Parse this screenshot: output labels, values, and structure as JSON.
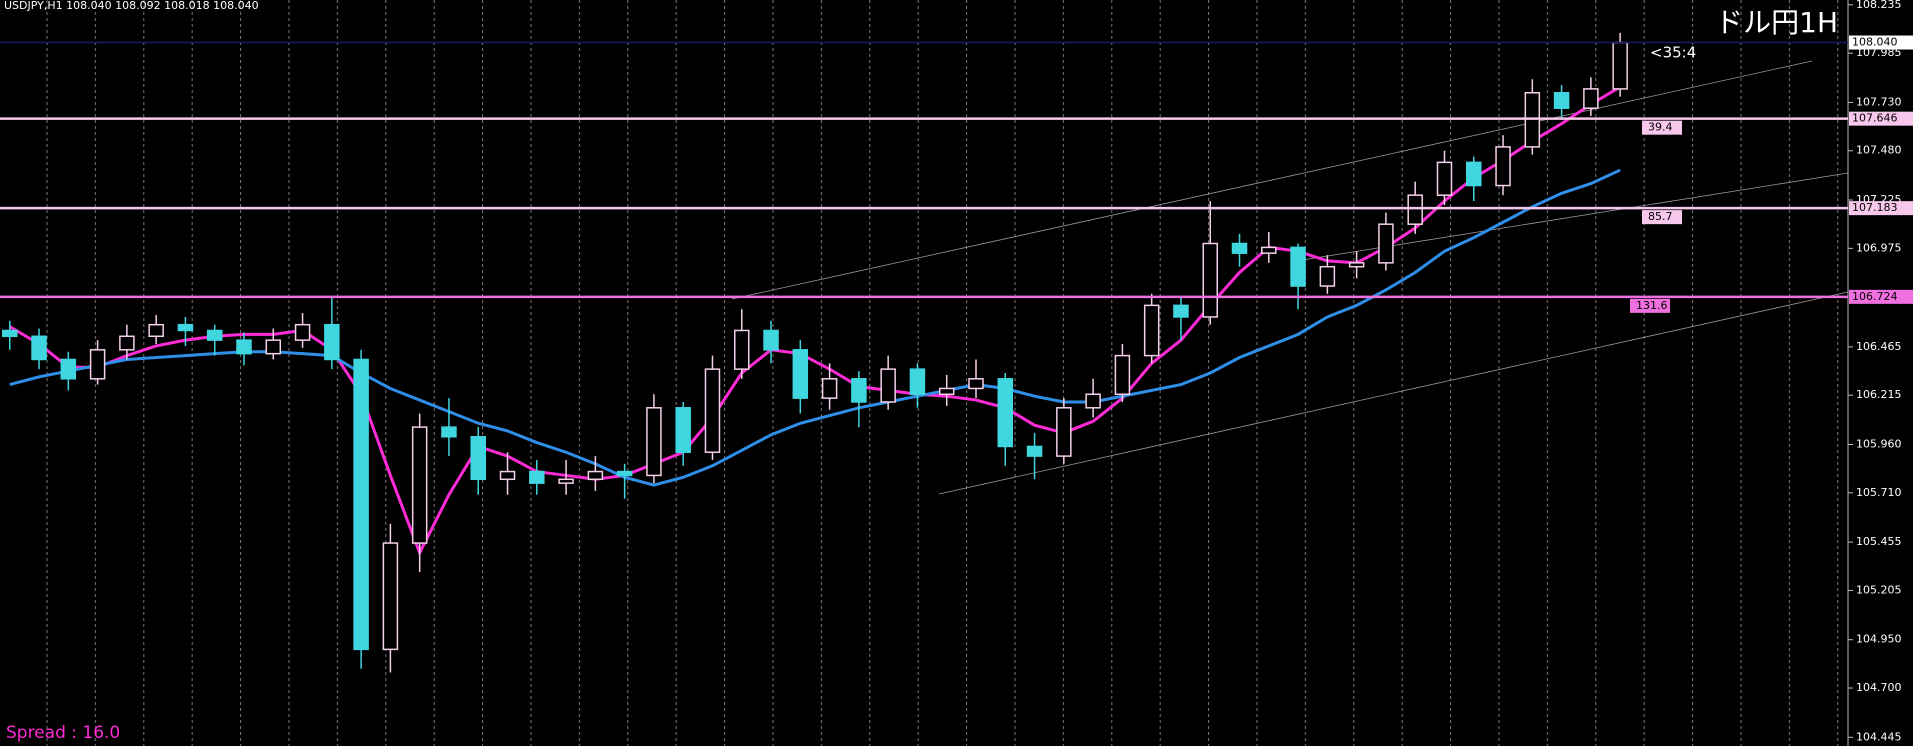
{
  "chart_data": {
    "type": "candlestick",
    "title": "ドル円1H",
    "subtitle": "USDJPY,H1  108.040 108.092 108.018 108.040",
    "annotation": "<35:4",
    "footer": "Spread : 16.0",
    "ylim": [
      104.4,
      108.26
    ],
    "yticks": [
      108.235,
      107.985,
      {
        "value": 107.73,
        "label": "107.730"
      },
      {
        "value": 107.48,
        "label": "107.480"
      },
      107.225,
      106.975,
      106.465,
      106.215,
      {
        "value": 105.96,
        "label": "105.960"
      },
      {
        "value": 105.71,
        "label": "105.710"
      },
      105.455,
      105.205,
      {
        "value": 104.95,
        "label": "104.950"
      },
      {
        "value": 104.7,
        "label": "104.700"
      },
      104.445
    ],
    "up_color": "#f4d0ea",
    "down_color": "#3fd6e0",
    "open": [
      106.55,
      106.52,
      106.4,
      106.3,
      106.45,
      106.52,
      106.58,
      106.55,
      106.5,
      106.43,
      106.5,
      106.58,
      106.4,
      104.9,
      105.45,
      106.05,
      106.0,
      105.78,
      105.82,
      105.76,
      105.78,
      105.82,
      105.8,
      106.15,
      105.92,
      106.35,
      106.55,
      106.45,
      106.2,
      106.3,
      106.18,
      106.35,
      106.22,
      106.25,
      106.3,
      105.95,
      105.9,
      106.15,
      106.22,
      106.42,
      106.68,
      106.62,
      107.0,
      106.95,
      106.98,
      106.78,
      106.88,
      106.9,
      107.1,
      107.25,
      107.42,
      107.3,
      107.5,
      107.78,
      107.7,
      107.8
    ],
    "high": [
      106.6,
      106.56,
      106.44,
      106.5,
      106.58,
      106.63,
      106.62,
      106.58,
      106.54,
      106.56,
      106.64,
      106.72,
      106.45,
      105.55,
      106.12,
      106.2,
      106.05,
      105.92,
      105.88,
      105.88,
      105.9,
      105.86,
      106.22,
      106.18,
      106.42,
      106.66,
      106.6,
      106.5,
      106.38,
      106.34,
      106.42,
      106.38,
      106.32,
      106.4,
      106.33,
      106.02,
      106.2,
      106.3,
      106.48,
      106.74,
      106.72,
      107.22,
      107.05,
      107.06,
      107.0,
      106.94,
      106.96,
      107.16,
      107.32,
      107.48,
      107.45,
      107.56,
      107.85,
      107.82,
      107.86,
      108.09
    ],
    "low": [
      106.45,
      106.35,
      106.24,
      106.27,
      106.4,
      106.48,
      106.47,
      106.42,
      106.37,
      106.4,
      106.46,
      106.35,
      104.8,
      104.78,
      105.3,
      105.9,
      105.7,
      105.7,
      105.7,
      105.7,
      105.72,
      105.68,
      105.76,
      105.85,
      105.88,
      106.3,
      106.38,
      106.12,
      106.14,
      106.05,
      106.14,
      106.15,
      106.16,
      106.2,
      105.85,
      105.78,
      105.86,
      106.1,
      106.18,
      106.38,
      106.5,
      106.58,
      106.88,
      106.9,
      106.66,
      106.74,
      106.82,
      106.86,
      107.05,
      107.2,
      107.22,
      107.25,
      107.46,
      107.64,
      107.66,
      107.76
    ],
    "close": [
      106.52,
      106.4,
      106.3,
      106.45,
      106.52,
      106.58,
      106.55,
      106.5,
      106.43,
      106.5,
      106.58,
      106.4,
      104.9,
      105.45,
      106.05,
      106.0,
      105.78,
      105.82,
      105.76,
      105.78,
      105.82,
      105.8,
      106.15,
      105.92,
      106.35,
      106.55,
      106.45,
      106.2,
      106.3,
      106.18,
      106.35,
      106.22,
      106.25,
      106.3,
      105.95,
      105.9,
      106.15,
      106.22,
      106.42,
      106.68,
      106.62,
      107.0,
      106.95,
      106.98,
      106.78,
      106.88,
      106.9,
      107.1,
      107.25,
      107.42,
      107.3,
      107.5,
      107.78,
      107.7,
      107.8,
      108.04
    ],
    "lines": [
      {
        "color": "#ff2bd6",
        "values": [
          106.57,
          106.48,
          106.36,
          106.36,
          106.42,
          106.47,
          106.5,
          106.52,
          106.53,
          106.53,
          106.55,
          106.45,
          106.22,
          105.8,
          105.4,
          105.7,
          105.95,
          105.9,
          105.82,
          105.8,
          105.78,
          105.8,
          105.86,
          105.92,
          106.1,
          106.33,
          106.45,
          106.43,
          106.35,
          106.26,
          106.24,
          106.22,
          106.21,
          106.19,
          106.15,
          106.06,
          106.02,
          106.08,
          106.2,
          106.38,
          106.5,
          106.68,
          106.85,
          106.98,
          106.96,
          106.91,
          106.9,
          106.98,
          107.08,
          107.22,
          107.34,
          107.43,
          107.53,
          107.62,
          107.72,
          107.81
        ]
      },
      {
        "color": "#2f8fe8",
        "values": [
          106.27,
          106.31,
          106.34,
          106.37,
          106.4,
          106.41,
          106.42,
          106.43,
          106.44,
          106.44,
          106.43,
          106.42,
          106.33,
          106.25,
          106.19,
          106.13,
          106.07,
          106.03,
          105.97,
          105.92,
          105.86,
          105.79,
          105.75,
          105.79,
          105.85,
          105.93,
          106.01,
          106.07,
          106.11,
          106.15,
          106.18,
          106.21,
          106.24,
          106.27,
          106.25,
          106.21,
          106.18,
          106.18,
          106.21,
          106.24,
          106.27,
          106.33,
          106.41,
          106.47,
          106.53,
          106.62,
          106.68,
          106.76,
          106.85,
          106.96,
          107.03,
          107.11,
          107.19,
          107.26,
          107.31,
          107.38
        ]
      }
    ],
    "hlines": [
      {
        "value": 107.646,
        "note": 39.4,
        "color": "#f8c8ec"
      },
      {
        "value": 107.183,
        "note": 85.7,
        "color": "#f8c8ec"
      },
      {
        "value": 106.724,
        "note": 131.6,
        "color": "#f070e0"
      }
    ],
    "current": {
      "value": 108.04,
      "label": "108.040",
      "color": "#1a1a6e"
    }
  }
}
